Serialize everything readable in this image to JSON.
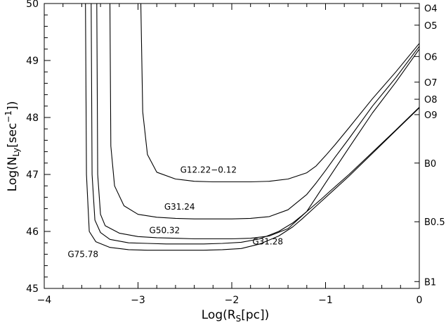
{
  "chart_data": {
    "type": "line",
    "xlim": [
      -4,
      0
    ],
    "ylim": [
      45,
      50
    ],
    "x_ticks": [
      -4,
      -3,
      -2,
      -1,
      0
    ],
    "x_tick_labels": [
      "−4",
      "−3",
      "−2",
      "−1",
      "0"
    ],
    "y_ticks": [
      45,
      46,
      47,
      48,
      49,
      50
    ],
    "y_tick_labels": [
      "45",
      "46",
      "47",
      "48",
      "49",
      "50"
    ],
    "xlabel": "Log(R",
    "xlabel_sub": "S",
    "xlabel_tail": "[pc])",
    "ylabel": "Log(N",
    "ylabel_sub": "Ly",
    "ylabel_mid": "[sec",
    "ylabel_sup": "−1",
    "ylabel_tail": "])",
    "spectral_types": [
      {
        "label": "O4",
        "y": 49.92
      },
      {
        "label": "O5",
        "y": 49.62
      },
      {
        "label": "O6",
        "y": 49.07
      },
      {
        "label": "O7",
        "y": 48.62
      },
      {
        "label": "O8",
        "y": 48.32
      },
      {
        "label": "O9",
        "y": 48.05
      },
      {
        "label": "B0",
        "y": 47.2
      },
      {
        "label": "B0.5",
        "y": 46.17
      },
      {
        "label": "B1",
        "y": 45.12
      }
    ],
    "series": [
      {
        "name": "G12.22−0.12",
        "label_x": -2.55,
        "label_y": 47.03,
        "x": [
          -2.97,
          -2.95,
          -2.9,
          -2.8,
          -2.6,
          -2.4,
          -2.2,
          -2.0,
          -1.8,
          -1.6,
          -1.4,
          -1.2,
          -1.1,
          -1.0,
          -0.9,
          -0.75,
          -0.5,
          -0.25,
          0
        ],
        "y": [
          50.0,
          48.1,
          47.35,
          47.04,
          46.92,
          46.88,
          46.87,
          46.87,
          46.87,
          46.88,
          46.92,
          47.03,
          47.15,
          47.33,
          47.52,
          47.82,
          48.33,
          48.8,
          49.3
        ]
      },
      {
        "name": "G31.24",
        "label_x": -2.72,
        "label_y": 46.38,
        "x": [
          -3.3,
          -3.29,
          -3.25,
          -3.15,
          -3.0,
          -2.8,
          -2.6,
          -2.4,
          -2.2,
          -2.0,
          -1.8,
          -1.6,
          -1.4,
          -1.2,
          -1.1,
          -1.0,
          -0.9,
          -0.75,
          -0.5,
          -0.25,
          0
        ],
        "y": [
          50.0,
          47.5,
          46.8,
          46.45,
          46.3,
          46.25,
          46.23,
          46.22,
          46.22,
          46.22,
          46.23,
          46.26,
          46.38,
          46.65,
          46.85,
          47.07,
          47.3,
          47.63,
          48.2,
          48.7,
          49.25
        ]
      },
      {
        "name": "G50.32",
        "label_x": -2.88,
        "label_y": 45.97,
        "x": [
          -3.44,
          -3.43,
          -3.4,
          -3.35,
          -3.2,
          -3.0,
          -2.8,
          -2.6,
          -2.4,
          -2.2,
          -2.0,
          -1.8,
          -1.6,
          -1.4,
          -1.2,
          -1.1,
          -1.0,
          -0.9,
          -0.75,
          -0.5,
          -0.25,
          0
        ],
        "y": [
          50.0,
          47.0,
          46.3,
          46.1,
          45.97,
          45.91,
          45.89,
          45.88,
          45.87,
          45.87,
          45.87,
          45.88,
          45.92,
          46.05,
          46.35,
          46.6,
          46.85,
          47.1,
          47.47,
          48.08,
          48.62,
          49.2
        ]
      },
      {
        "name": "G75.78",
        "label_x": -3.75,
        "label_y": 45.55,
        "x": [
          -3.56,
          -3.55,
          -3.52,
          -3.45,
          -3.3,
          -3.1,
          -2.9,
          -2.7,
          -2.5,
          -2.3,
          -2.1,
          -1.9,
          -1.7,
          -1.5,
          -1.35,
          -1.25,
          -1.15,
          -1.05,
          -0.95,
          -0.75,
          -0.5,
          -0.25,
          0
        ],
        "y": [
          50.0,
          47.0,
          46.0,
          45.82,
          45.72,
          45.68,
          45.67,
          45.67,
          45.67,
          45.67,
          45.68,
          45.7,
          45.78,
          45.92,
          46.08,
          46.22,
          46.37,
          46.52,
          46.67,
          46.97,
          47.37,
          47.77,
          48.17
        ]
      },
      {
        "name": "G31.28",
        "label_x": -1.78,
        "label_y": 45.77,
        "x": [
          -3.5,
          -3.49,
          -3.46,
          -3.4,
          -3.3,
          -3.1,
          -2.9,
          -2.7,
          -2.5,
          -2.3,
          -2.1,
          -1.9,
          -1.7,
          -1.5,
          -1.35,
          -1.25,
          -1.15,
          -1.05,
          -0.95,
          -0.75,
          -0.5,
          -0.25,
          0
        ],
        "y": [
          50.0,
          47.0,
          46.2,
          45.98,
          45.86,
          45.8,
          45.79,
          45.78,
          45.78,
          45.78,
          45.79,
          45.81,
          45.87,
          46.0,
          46.15,
          46.28,
          46.42,
          46.56,
          46.71,
          47.0,
          47.39,
          47.78,
          48.18
        ]
      }
    ]
  }
}
